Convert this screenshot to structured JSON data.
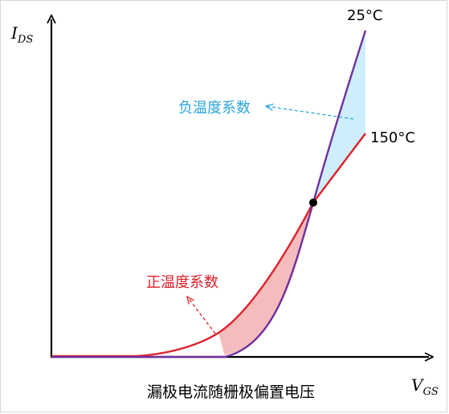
{
  "diagram": {
    "y_axis_label": "I",
    "y_axis_subscript": "DS",
    "x_axis_label": "V",
    "x_axis_subscript": "GS",
    "caption": "漏极电流随栅极偏置电压",
    "curve_25c_label": "25°C",
    "curve_150c_label": "150°C",
    "negative_coeff_label": "负温度系数",
    "positive_coeff_label": "正温度系数",
    "colors": {
      "axis": "#000000",
      "curve_25c": "#7030a0",
      "curve_150c": "#e0202a",
      "negative_fill": "#cdeefa",
      "positive_fill": "#f4bcbc",
      "negative_text": "#2aa6dc",
      "positive_text": "#e0202a",
      "crossover_point": "#000000"
    }
  }
}
